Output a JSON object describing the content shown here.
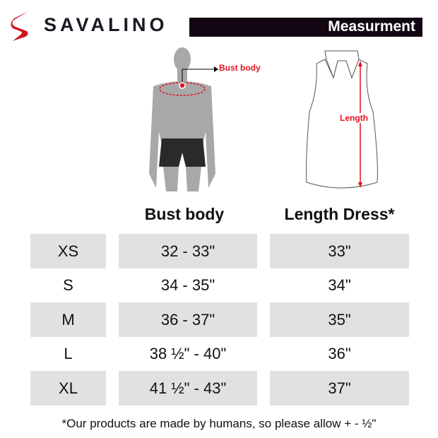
{
  "brand": {
    "name": "SAVALINO",
    "accent": "#d0141e"
  },
  "banner": {
    "title": "Measurment"
  },
  "figures": {
    "bust_label": "Bust body",
    "length_label": "Length"
  },
  "table": {
    "headers": [
      "Bust body",
      "Length Dress*"
    ],
    "rows": [
      {
        "size": "XS",
        "bust": "32 - 33\"",
        "length": "33\""
      },
      {
        "size": "S",
        "bust": "34 - 35\"",
        "length": "34\""
      },
      {
        "size": "M",
        "bust": "36 - 37\"",
        "length": "35\""
      },
      {
        "size": "L",
        "bust": "38 ½\" - 40\"",
        "length": "36\""
      },
      {
        "size": "XL",
        "bust": "41 ½\" - 43\"",
        "length": "37\""
      }
    ]
  },
  "footnote": "*Our products are made by humans, so please allow + - ½\""
}
